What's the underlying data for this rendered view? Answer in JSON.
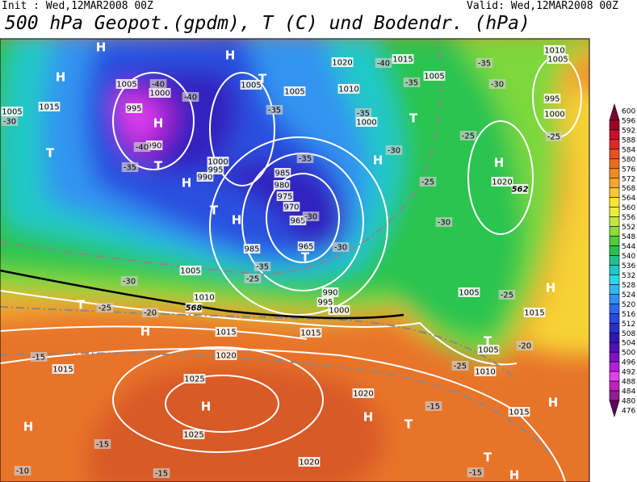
{
  "header": {
    "init": "Init : Wed,12MAR2008 00Z",
    "valid": "Valid: Wed,12MAR2008 00Z",
    "title": "500 hPa Geopot.(gpdm), T (C) und Bodendr. (hPa)"
  },
  "colorbar": {
    "labels": [
      "600",
      "596",
      "592",
      "588",
      "584",
      "580",
      "576",
      "572",
      "568",
      "564",
      "560",
      "556",
      "552",
      "548",
      "544",
      "540",
      "536",
      "532",
      "528",
      "524",
      "520",
      "516",
      "512",
      "508",
      "504",
      "500",
      "496",
      "492",
      "488",
      "484",
      "480",
      "476"
    ],
    "colors": [
      "#7a0030",
      "#a00028",
      "#c8102a",
      "#e02828",
      "#e8501e",
      "#ec6c1e",
      "#f08c1e",
      "#f4a82a",
      "#f8c832",
      "#fae632",
      "#e8ee3a",
      "#c0e83a",
      "#8cdc3a",
      "#50cc3c",
      "#28c050",
      "#20c090",
      "#20c8c8",
      "#28d8e8",
      "#30b8f0",
      "#3090f0",
      "#2c68ec",
      "#2848e0",
      "#2830c8",
      "#3018b0",
      "#5010b8",
      "#8010c8",
      "#b020d8",
      "#e040f0",
      "#c020c0",
      "#902090",
      "#600060"
    ]
  },
  "map": {
    "labels": [
      "H",
      "1005",
      "1000",
      "995",
      "-40",
      "-40",
      "H",
      "990",
      "-40",
      "T",
      "-35",
      "1015",
      "1005",
      "-30",
      "T",
      "H",
      "T",
      "H",
      "990",
      "995",
      "1000",
      "985",
      "980",
      "975",
      "970",
      "965",
      "-30",
      "965",
      "-30",
      "T",
      "985",
      "-35",
      "-25",
      "990",
      "995",
      "1000",
      "1005",
      "-30",
      "T",
      "-25",
      "1010",
      "-20",
      "568",
      "H",
      "1015",
      "1020",
      "1025",
      "H",
      "1025",
      "1015",
      "-15",
      "H",
      "-15",
      "-10",
      "-15",
      "1020",
      "1020",
      "H",
      "T",
      "-15",
      "T",
      "-15",
      "H",
      "H",
      "1015",
      "H",
      "1020",
      "562",
      "-25",
      "1005",
      "-25",
      "H",
      "1015",
      "T",
      "1005",
      "1010",
      "-20",
      "-25",
      "-30",
      "-25",
      "H",
      "-30",
      "-35",
      "1000",
      "T",
      "1010",
      "-35",
      "1005",
      "1015",
      "-40",
      "1020",
      "1005",
      "1005",
      "-35",
      "-35",
      "1010",
      "1005",
      "-35",
      "-30",
      "995",
      "1000",
      "-25",
      "T",
      "H",
      "H",
      "1015"
    ]
  }
}
